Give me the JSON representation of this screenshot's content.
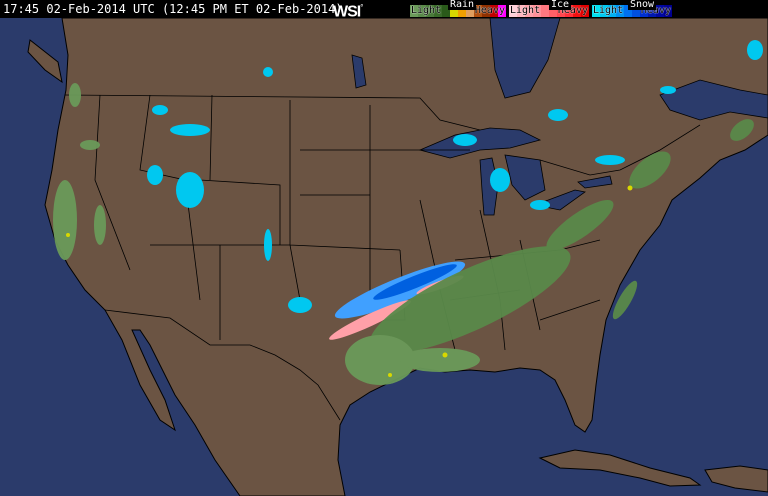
{
  "header": {
    "timestamp": "17:45 02-Feb-2014 UTC (12:45 PM ET 02-Feb-2014)",
    "logo": "WSI",
    "logo_mark": "°"
  },
  "legend": {
    "rain": {
      "title": "Rain",
      "light": "Light",
      "heavy": "Heavy",
      "colors": [
        "#6b9a5a",
        "#5a8a4a",
        "#4a7a3a",
        "#3a6a2a",
        "#2a5a1a",
        "#d8d800",
        "#f0a000",
        "#e0a060",
        "#b05010",
        "#903000",
        "#c00000",
        "#ff00ff"
      ]
    },
    "ice": {
      "title": "Ice",
      "light": "Light",
      "heavy": "Heavy",
      "colors": [
        "#ffd0d8",
        "#ffb8c0",
        "#ffa0a8",
        "#ff9098",
        "#ff7880",
        "#ff6068",
        "#ff4850",
        "#ff3038",
        "#f01010",
        "#e00000"
      ]
    },
    "snow": {
      "title": "Snow",
      "light": "Light",
      "heavy": "Heavy",
      "colors": [
        "#00e0f0",
        "#00c8f0",
        "#00b0f0",
        "#0090f0",
        "#0070f0",
        "#0050e0",
        "#0030d0",
        "#0018b0",
        "#0008a0",
        "#000090"
      ]
    }
  },
  "map": {
    "ocean_color": "#2b3b6b",
    "land_color": "#6b5443",
    "border_color": "#000000"
  }
}
